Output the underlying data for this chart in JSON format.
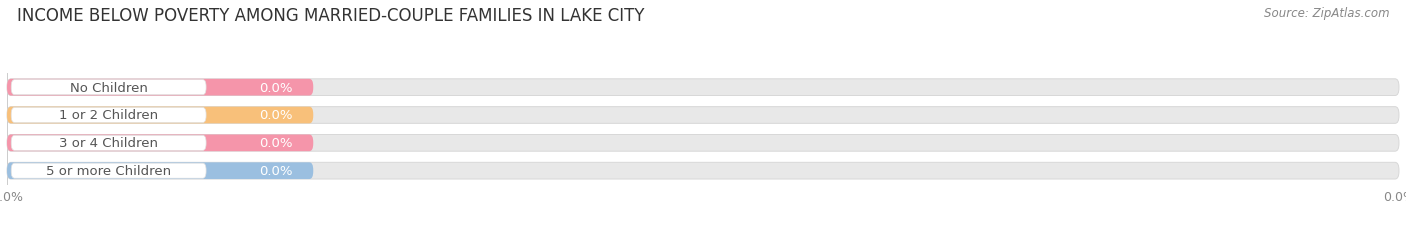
{
  "title": "INCOME BELOW POVERTY AMONG MARRIED-COUPLE FAMILIES IN LAKE CITY",
  "source": "Source: ZipAtlas.com",
  "categories": [
    "No Children",
    "1 or 2 Children",
    "3 or 4 Children",
    "5 or more Children"
  ],
  "values": [
    0.0,
    0.0,
    0.0,
    0.0
  ],
  "bar_colors": [
    "#f595aa",
    "#f8c07a",
    "#f595aa",
    "#9bbfe0"
  ],
  "background_color": "#ffffff",
  "bar_bg_color": "#e8e8e8",
  "bar_bg_border": "#d8d8d8",
  "title_fontsize": 12,
  "label_fontsize": 9.5,
  "value_fontsize": 9.5,
  "source_fontsize": 8.5,
  "tick_fontsize": 9,
  "grid_color": "#cccccc",
  "label_color": "#555555",
  "value_color": "#ffffff",
  "white_pill_color": "#ffffff",
  "white_pill_border": "#e0e0e0"
}
